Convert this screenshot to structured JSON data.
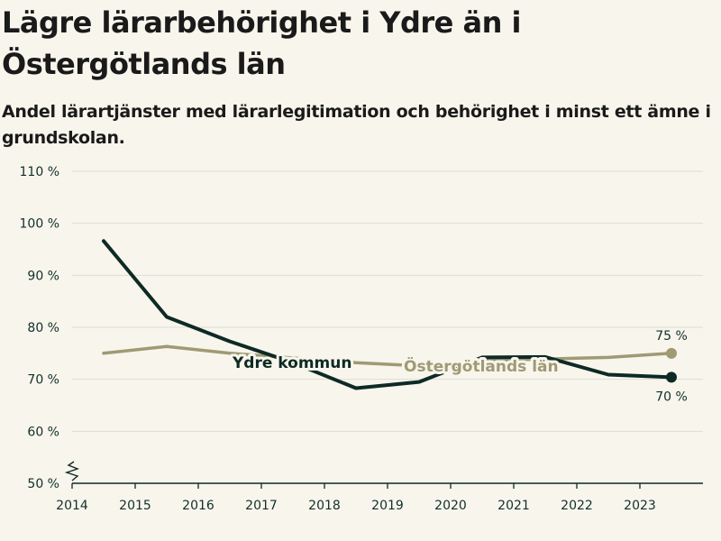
{
  "title": "Lägre lärarbehörighet i Ydre än i Östergötlands län",
  "subtitle": "Andel lärartjänster med lärarlegitimation och behörighet i minst ett ämne i grundskolan.",
  "colors": {
    "background": "#f8f5ec",
    "ydre": "#0d2a25",
    "ostergotland": "#9f9a74",
    "grid": "#dcdcd8"
  },
  "chart_data": {
    "type": "line",
    "title": "Lägre lärarbehörighet i Ydre än i Östergötlands län",
    "xlabel": "",
    "ylabel": "",
    "ylim": [
      50,
      110
    ],
    "y_ticks": [
      50,
      60,
      70,
      80,
      90,
      100,
      110
    ],
    "y_tick_labels": [
      "50 %",
      "60 %",
      "70 %",
      "80 %",
      "90 %",
      "100 %",
      "110 %"
    ],
    "x_ticks": [
      2014,
      2015,
      2016,
      2017,
      2018,
      2019,
      2020,
      2021,
      2022,
      2023
    ],
    "x_tick_labels": [
      "2014",
      "2015",
      "2016",
      "2017",
      "2018",
      "2019",
      "2020",
      "2021",
      "2022",
      "2023"
    ],
    "axis_break": true,
    "series": [
      {
        "name": "Ydre kommun",
        "x": [
          2014.5,
          2015.5,
          2016.5,
          2017.5,
          2018.5,
          2019.5,
          2020.5,
          2021.5,
          2022.5,
          2023.5
        ],
        "values": [
          96.6,
          82.0,
          77.3,
          73.2,
          68.3,
          69.5,
          74.2,
          74.3,
          70.9,
          70.4
        ],
        "end_label": "70 %"
      },
      {
        "name": "Östergötlands län",
        "x": [
          2014.5,
          2015.5,
          2016.5,
          2017.5,
          2018.5,
          2019.5,
          2020.5,
          2021.5,
          2022.5,
          2023.5
        ],
        "values": [
          75.0,
          76.3,
          75.0,
          74.1,
          73.2,
          72.6,
          73.6,
          73.9,
          74.2,
          75.0
        ],
        "end_label": "75 %"
      }
    ]
  }
}
